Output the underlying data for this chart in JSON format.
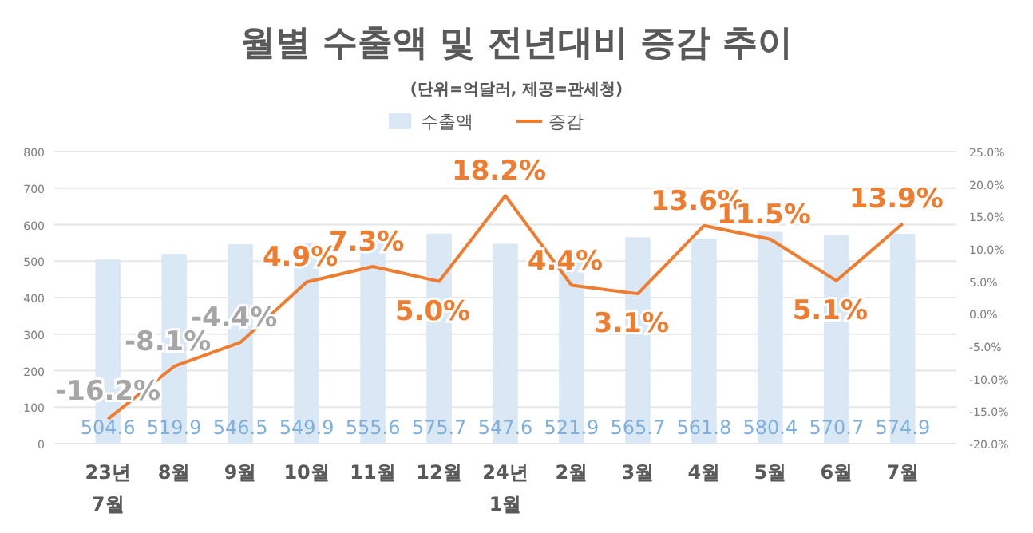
{
  "chart_data": {
    "type": "bar",
    "title": "월별 수출액 및 전년대비 증감 추이",
    "subtitle": "(단위=억달러, 제공=관세청)",
    "categories": [
      "23년 7월",
      "8월",
      "9월",
      "10월",
      "11월",
      "12월",
      "24년 1월",
      "2월",
      "3월",
      "4월",
      "5월",
      "6월",
      "7월"
    ],
    "series": [
      {
        "name": "수출액",
        "color": "#dae8f6",
        "values": [
          504.6,
          519.9,
          546.5,
          549.9,
          555.6,
          575.7,
          547.6,
          521.9,
          565.7,
          561.8,
          580.4,
          570.7,
          574.9
        ],
        "value_labels": [
          "504.6",
          "519.9",
          "546.5",
          "549.9",
          "555.6",
          "575.7",
          "547.6",
          "521.9",
          "565.7",
          "561.8",
          "580.4",
          "570.7",
          "574.9"
        ]
      },
      {
        "name": "증감",
        "type": "line",
        "axis": "y2",
        "color": "#ed7d31",
        "values": [
          -16.2,
          -8.1,
          -4.4,
          4.9,
          7.3,
          5.0,
          18.2,
          4.4,
          3.1,
          13.6,
          11.5,
          5.1,
          13.9
        ],
        "value_labels": [
          "-16.2%",
          "-8.1%",
          "-4.4%",
          "4.9%",
          "7.3%",
          "5.0%",
          "18.2%",
          "4.4%",
          "3.1%",
          "13.6%",
          "11.5%",
          "5.1%",
          "13.9%"
        ]
      }
    ],
    "ylim": [
      0,
      800
    ],
    "yticks": [
      0,
      100,
      200,
      300,
      400,
      500,
      600,
      700,
      800
    ],
    "y2lim": [
      -20,
      25
    ],
    "y2ticks": [
      {
        "value": -20,
        "label": "-20.0%"
      },
      {
        "value": -15,
        "label": "-15.0%"
      },
      {
        "value": -10,
        "label": "-10.0%"
      },
      {
        "value": -5,
        "label": "-5.0%"
      },
      {
        "value": 0,
        "label": "0.0%"
      },
      {
        "value": 5,
        "label": "5.0%"
      },
      {
        "value": 10,
        "label": "10.0%"
      },
      {
        "value": 15,
        "label": "15.0%"
      },
      {
        "value": 20,
        "label": "20.0%"
      },
      {
        "value": 25,
        "label": "25.0%"
      }
    ],
    "grid": "y",
    "legend": "top"
  }
}
